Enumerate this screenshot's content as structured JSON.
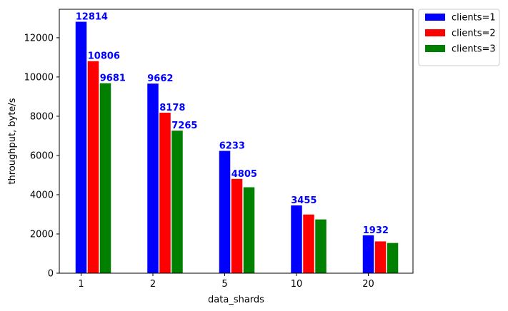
{
  "chart_data": {
    "type": "bar",
    "title": "",
    "xlabel": "data_shards",
    "ylabel": "throughput, byte/s",
    "categories": [
      "1",
      "2",
      "5",
      "10",
      "20"
    ],
    "series": [
      {
        "name": "clients=1",
        "color": "#0000ff",
        "values": [
          12814,
          9662,
          6233,
          3455,
          1932
        ]
      },
      {
        "name": "clients=2",
        "color": "#ff0000",
        "values": [
          10806,
          8178,
          4805,
          2990,
          1620
        ]
      },
      {
        "name": "clients=3",
        "color": "#008000",
        "values": [
          9681,
          7265,
          4380,
          2740,
          1540
        ]
      }
    ],
    "data_labels": [
      {
        "series": 0,
        "category": 0,
        "text": "12814"
      },
      {
        "series": 1,
        "category": 0,
        "text": "10806"
      },
      {
        "series": 2,
        "category": 0,
        "text": "9681"
      },
      {
        "series": 0,
        "category": 1,
        "text": "9662"
      },
      {
        "series": 1,
        "category": 1,
        "text": "8178"
      },
      {
        "series": 2,
        "category": 1,
        "text": "7265"
      },
      {
        "series": 0,
        "category": 2,
        "text": "6233"
      },
      {
        "series": 1,
        "category": 2,
        "text": "4805"
      },
      {
        "series": 0,
        "category": 3,
        "text": "3455"
      },
      {
        "series": 0,
        "category": 4,
        "text": "1932"
      }
    ],
    "data_label_color": "#0000ff",
    "ylim": [
      0,
      13450
    ],
    "yticks": [
      0,
      2000,
      4000,
      6000,
      8000,
      10000,
      12000
    ],
    "grid": false,
    "legend_position": "outside-top-right"
  }
}
